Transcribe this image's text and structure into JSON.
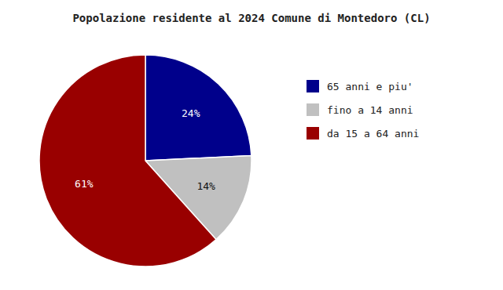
{
  "chart_data": {
    "type": "pie",
    "title": "Popolazione residente al 2024 Comune di Montedoro (CL)",
    "categories": [
      "65 anni e piu'",
      "fino a 14 anni",
      "da 15 a 64 anni"
    ],
    "values": [
      24,
      14,
      61
    ],
    "value_labels": [
      "24%",
      "14%",
      "61%"
    ],
    "colors": [
      "#00008B",
      "#C0C0C0",
      "#990000"
    ],
    "data_labels": true,
    "legend": "right"
  }
}
